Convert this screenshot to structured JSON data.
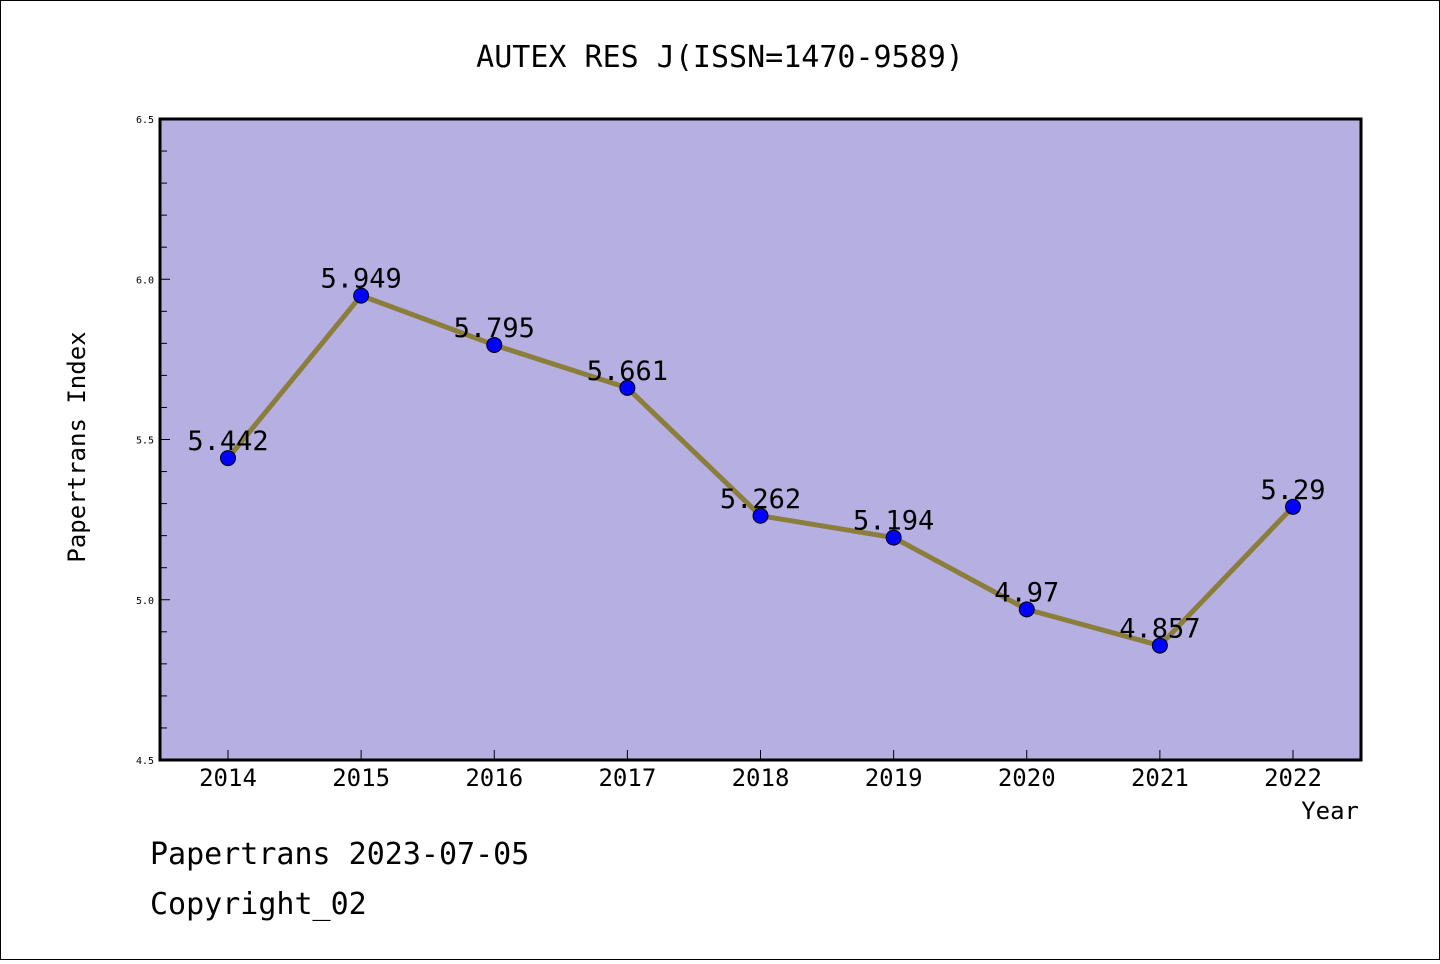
{
  "chart_data": {
    "type": "line",
    "title": "AUTEX RES J(ISSN=1470-9589)",
    "xlabel": "Year",
    "ylabel": "Papertrans Index",
    "x": [
      "2014",
      "2015",
      "2016",
      "2017",
      "2018",
      "2019",
      "2020",
      "2021",
      "2022"
    ],
    "series": [
      {
        "values": [
          5.442,
          5.949,
          5.795,
          5.661,
          5.262,
          5.194,
          4.97,
          4.857,
          5.29
        ],
        "labels": [
          "5.442",
          "5.949",
          "5.795",
          "5.661",
          "5.262",
          "5.194",
          "4.97",
          "4.857",
          "5.29"
        ],
        "line_color": "#8b7d3a",
        "marker_color": "#0000ff"
      }
    ],
    "ylim": [
      4.5,
      6.5
    ],
    "yticks": [
      "4.5",
      "5.0",
      "5.5",
      "6.0",
      "6.5"
    ],
    "yminor_step": 0.1,
    "grid": false,
    "legend": "none",
    "plot_background": "#b5afe2"
  },
  "footer": {
    "line1": "Papertrans 2023-07-05",
    "line2": "Copyright_02"
  }
}
